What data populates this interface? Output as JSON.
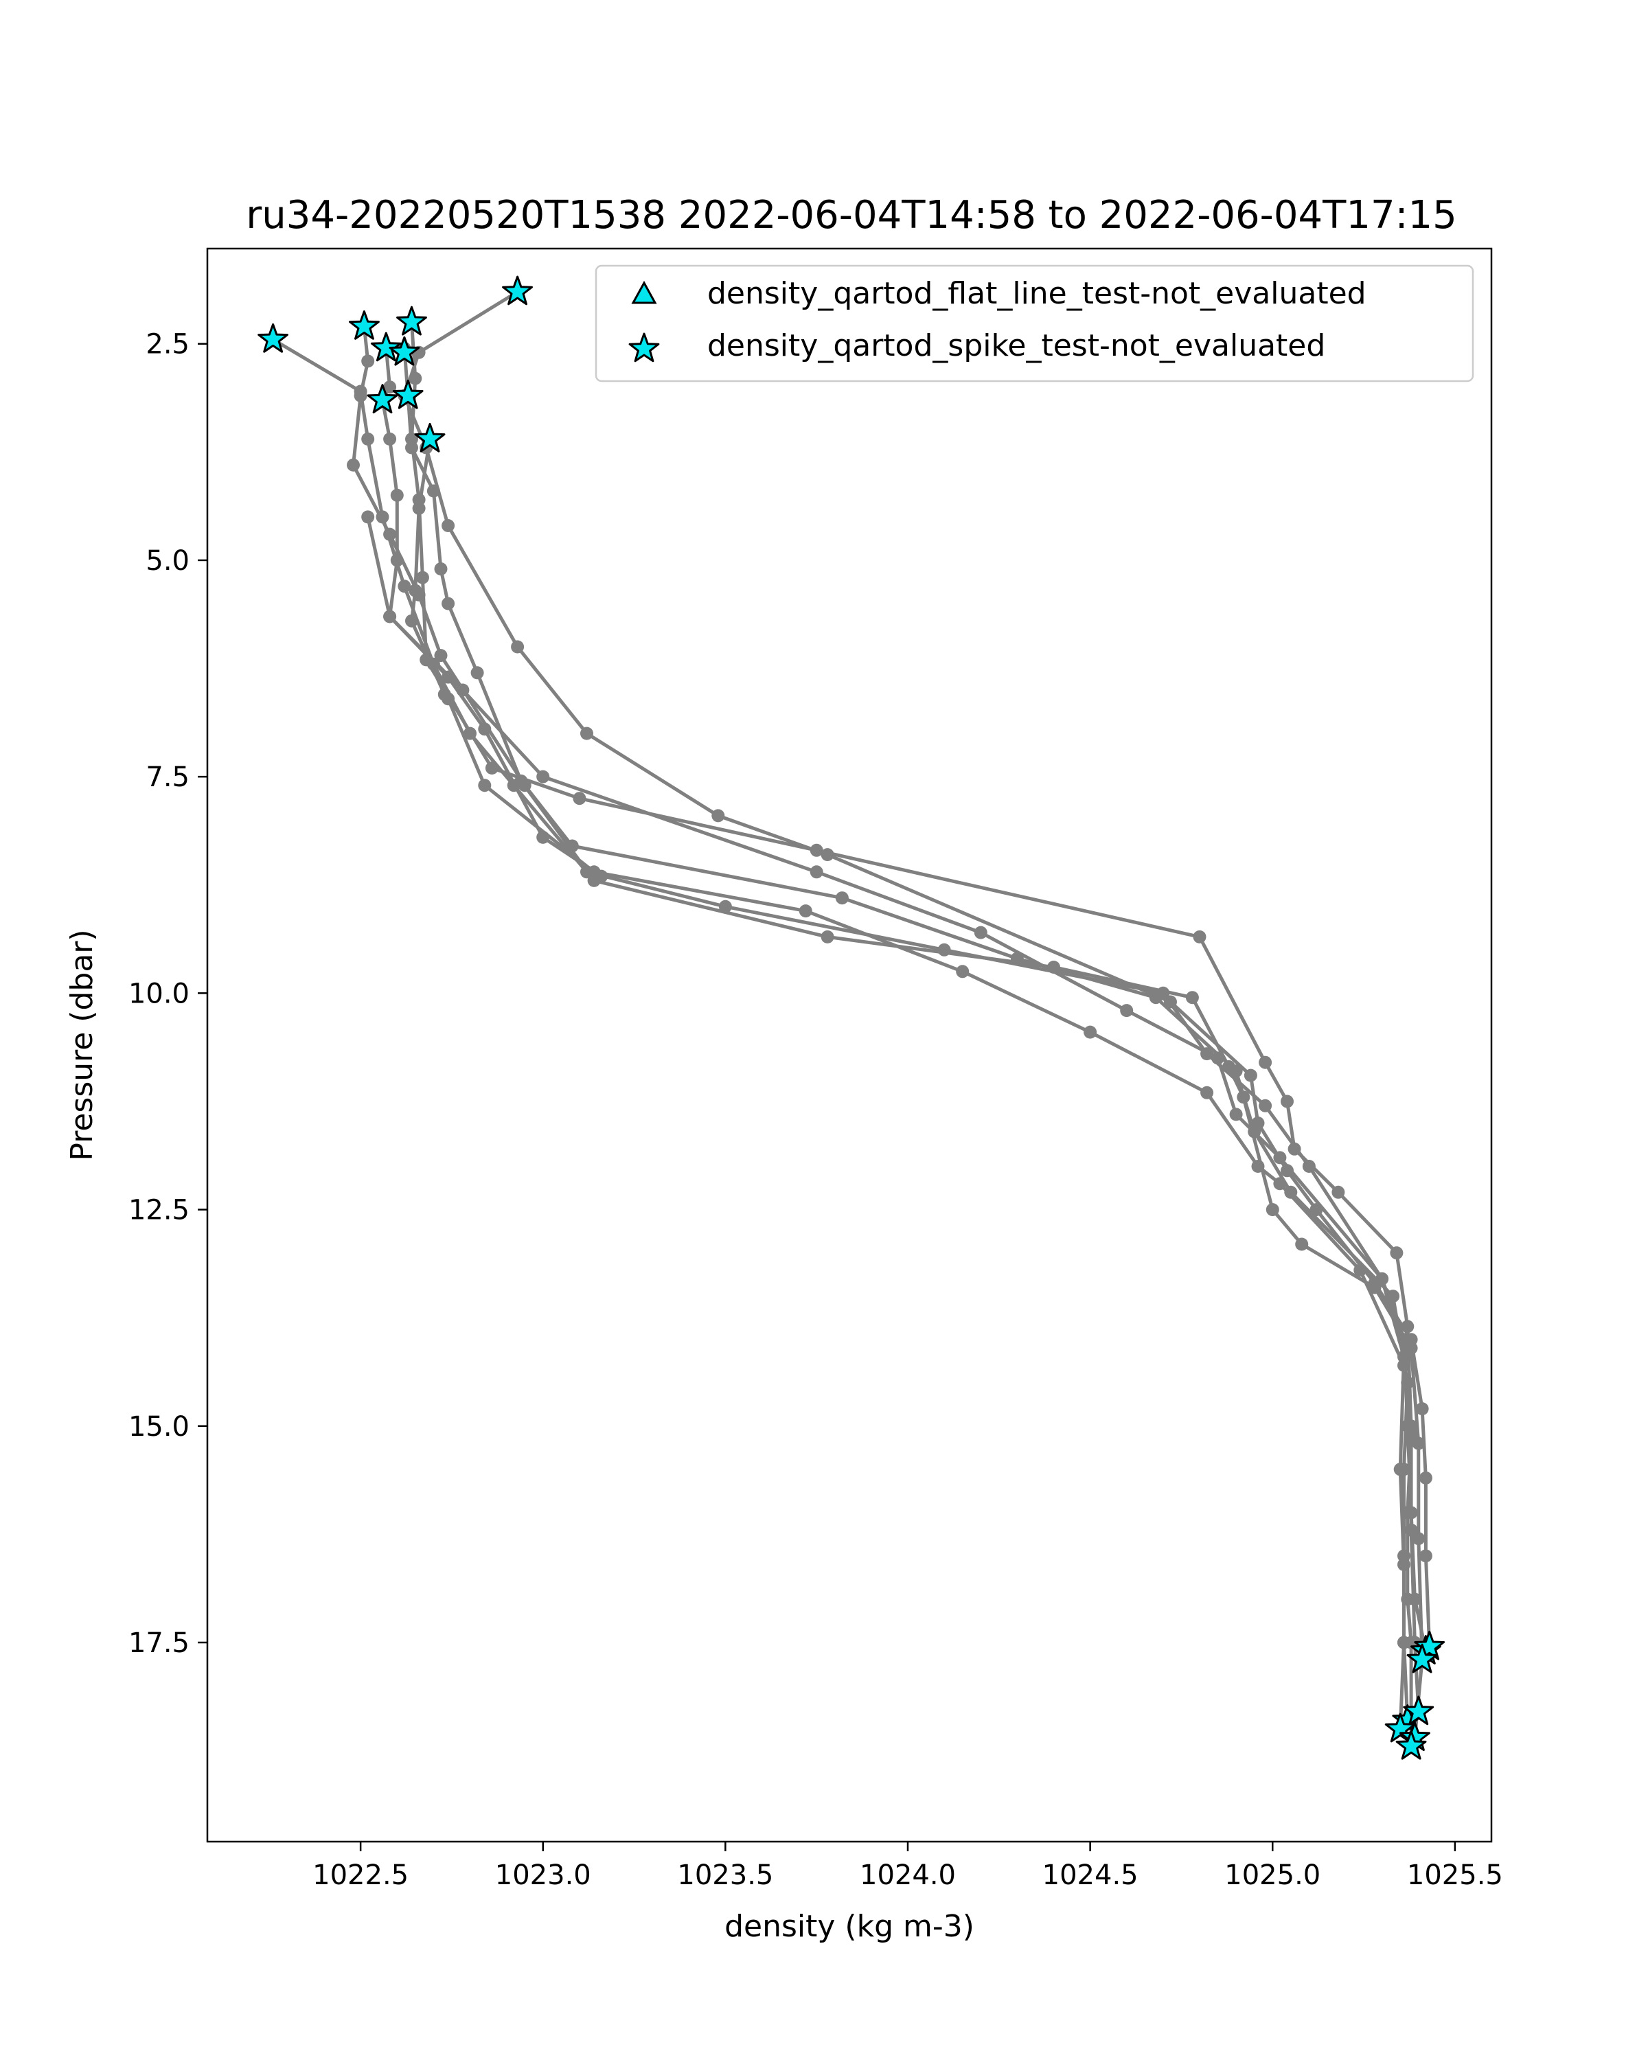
{
  "chart_data": {
    "type": "scatter",
    "title": "ru34-20220520T1538 2022-06-04T14:58 to 2022-06-04T17:15",
    "xlabel": "density (kg m-3)",
    "ylabel": "Pressure (dbar)",
    "xlim": [
      1022.08,
      1025.6
    ],
    "ylim": [
      19.8,
      1.4
    ],
    "y_inverted": true,
    "grid": false,
    "xticks": [
      1022.5,
      1023.0,
      1023.5,
      1024.0,
      1024.5,
      1025.0,
      1025.5
    ],
    "xtick_labels": [
      "1022.5",
      "1023.0",
      "1023.5",
      "1024.0",
      "1024.5",
      "1025.0",
      "1025.5"
    ],
    "yticks": [
      2.5,
      5.0,
      7.5,
      10.0,
      12.5,
      15.0,
      17.5
    ],
    "ytick_labels": [
      "2.5",
      "5.0",
      "7.5",
      "10.0",
      "12.5",
      "15.0",
      "17.5"
    ],
    "line_color": "#808080",
    "marker_color": "#00e5ee",
    "legend": {
      "position": "upper right",
      "entries": [
        {
          "label": "density_qartod_flat_line_test-not_evaluated",
          "marker": "triangle"
        },
        {
          "label": "density_qartod_spike_test-not_evaluated",
          "marker": "star"
        }
      ]
    },
    "profiles": [
      {
        "points": [
          [
            1022.26,
            2.45
          ],
          [
            1022.5,
            3.05
          ],
          [
            1022.52,
            3.6
          ],
          [
            1022.56,
            4.5
          ],
          [
            1022.62,
            5.3
          ],
          [
            1022.7,
            6.2
          ],
          [
            1022.8,
            7.0
          ],
          [
            1022.92,
            7.6
          ],
          [
            1023.12,
            8.6
          ],
          [
            1023.5,
            9.0
          ],
          [
            1024.1,
            9.5
          ],
          [
            1024.7,
            10.0
          ],
          [
            1024.82,
            10.7
          ],
          [
            1024.98,
            11.3
          ],
          [
            1025.1,
            12.0
          ],
          [
            1025.3,
            13.3
          ],
          [
            1025.36,
            14.0
          ],
          [
            1025.37,
            15.0
          ],
          [
            1025.38,
            16.0
          ],
          [
            1025.39,
            17.0
          ],
          [
            1025.42,
            17.6
          ]
        ]
      },
      {
        "points": [
          [
            1022.51,
            2.3
          ],
          [
            1022.52,
            2.7
          ],
          [
            1022.5,
            3.1
          ],
          [
            1022.48,
            3.9
          ],
          [
            1022.58,
            4.7
          ],
          [
            1022.66,
            5.4
          ],
          [
            1022.72,
            6.1
          ],
          [
            1022.95,
            7.6
          ],
          [
            1023.08,
            8.3
          ],
          [
            1023.82,
            8.9
          ],
          [
            1024.3,
            9.6
          ],
          [
            1024.68,
            10.05
          ],
          [
            1024.9,
            10.9
          ],
          [
            1024.95,
            11.6
          ],
          [
            1025.05,
            12.3
          ],
          [
            1025.33,
            13.5
          ],
          [
            1025.37,
            14.5
          ],
          [
            1025.36,
            15.5
          ],
          [
            1025.36,
            16.5
          ],
          [
            1025.36,
            17.5
          ],
          [
            1025.37,
            18.4
          ]
        ]
      },
      {
        "points": [
          [
            1022.64,
            2.25
          ],
          [
            1022.65,
            2.9
          ],
          [
            1022.64,
            3.6
          ],
          [
            1022.66,
            4.3
          ],
          [
            1022.67,
            5.2
          ],
          [
            1022.68,
            6.15
          ],
          [
            1022.86,
            7.4
          ],
          [
            1023.1,
            7.75
          ],
          [
            1023.75,
            8.35
          ],
          [
            1024.8,
            9.35
          ],
          [
            1024.98,
            10.8
          ],
          [
            1025.04,
            11.25
          ],
          [
            1025.06,
            11.8
          ],
          [
            1025.18,
            12.3
          ],
          [
            1025.34,
            13.0
          ],
          [
            1025.37,
            13.85
          ],
          [
            1025.38,
            15.0
          ],
          [
            1025.38,
            16.2
          ],
          [
            1025.39,
            17.5
          ],
          [
            1025.4,
            18.3
          ]
        ]
      },
      {
        "points": [
          [
            1022.57,
            2.55
          ],
          [
            1022.58,
            3.0
          ],
          [
            1022.56,
            3.15
          ],
          [
            1022.58,
            3.6
          ],
          [
            1022.6,
            4.25
          ],
          [
            1022.6,
            5.0
          ],
          [
            1022.58,
            5.65
          ],
          [
            1022.78,
            6.5
          ],
          [
            1023.0,
            7.5
          ],
          [
            1023.75,
            8.6
          ],
          [
            1024.2,
            9.3
          ],
          [
            1024.6,
            10.2
          ],
          [
            1024.85,
            10.75
          ],
          [
            1024.9,
            11.4
          ],
          [
            1025.02,
            11.9
          ],
          [
            1025.3,
            13.3
          ],
          [
            1025.36,
            14.2
          ],
          [
            1025.35,
            15.5
          ],
          [
            1025.36,
            16.6
          ],
          [
            1025.36,
            17.5
          ],
          [
            1025.35,
            18.5
          ]
        ]
      },
      {
        "points": [
          [
            1022.93,
            1.9
          ],
          [
            1022.66,
            2.6
          ],
          [
            1022.62,
            3.1
          ],
          [
            1022.68,
            3.7
          ],
          [
            1022.74,
            4.6
          ],
          [
            1022.93,
            6.0
          ],
          [
            1023.12,
            7.0
          ],
          [
            1023.48,
            7.95
          ],
          [
            1023.78,
            8.4
          ],
          [
            1024.72,
            10.1
          ],
          [
            1024.94,
            10.95
          ],
          [
            1024.96,
            11.5
          ],
          [
            1025.04,
            12.05
          ],
          [
            1025.12,
            12.5
          ],
          [
            1025.28,
            13.35
          ],
          [
            1025.38,
            14.0
          ],
          [
            1025.41,
            14.8
          ],
          [
            1025.42,
            15.6
          ],
          [
            1025.42,
            16.5
          ],
          [
            1025.43,
            17.55
          ]
        ]
      },
      {
        "points": [
          [
            1022.62,
            2.55
          ],
          [
            1022.63,
            3.1
          ],
          [
            1022.64,
            3.7
          ],
          [
            1022.7,
            4.2
          ],
          [
            1022.72,
            5.1
          ],
          [
            1022.74,
            5.5
          ],
          [
            1022.82,
            6.3
          ],
          [
            1022.94,
            7.55
          ],
          [
            1023.14,
            8.7
          ],
          [
            1023.78,
            9.35
          ],
          [
            1024.4,
            9.7
          ],
          [
            1024.78,
            10.05
          ],
          [
            1024.88,
            10.85
          ],
          [
            1024.92,
            11.2
          ],
          [
            1025.0,
            12.5
          ],
          [
            1025.08,
            12.9
          ],
          [
            1025.28,
            13.4
          ],
          [
            1025.38,
            14.1
          ],
          [
            1025.4,
            15.2
          ],
          [
            1025.4,
            16.3
          ],
          [
            1025.41,
            17.7
          ],
          [
            1025.39,
            18.6
          ]
        ]
      },
      {
        "points": [
          [
            1022.69,
            3.6
          ],
          [
            1022.66,
            4.4
          ],
          [
            1022.65,
            5.35
          ],
          [
            1022.64,
            5.7
          ],
          [
            1022.73,
            6.55
          ],
          [
            1022.74,
            6.6
          ],
          [
            1022.84,
            7.6
          ],
          [
            1023.14,
            8.6
          ],
          [
            1023.72,
            9.05
          ],
          [
            1024.15,
            9.75
          ],
          [
            1024.5,
            10.45
          ],
          [
            1024.82,
            11.15
          ],
          [
            1024.96,
            12.0
          ],
          [
            1025.02,
            12.2
          ],
          [
            1025.24,
            13.2
          ],
          [
            1025.36,
            14.3
          ],
          [
            1025.38,
            15.1
          ],
          [
            1025.37,
            16.0
          ],
          [
            1025.37,
            17.0
          ],
          [
            1025.38,
            17.5
          ],
          [
            1025.38,
            18.7
          ]
        ]
      },
      {
        "points": [
          [
            1022.52,
            4.5
          ],
          [
            1022.58,
            5.65
          ],
          [
            1022.74,
            6.35
          ],
          [
            1022.84,
            6.95
          ],
          [
            1023.0,
            8.2
          ],
          [
            1023.16,
            8.65
          ]
        ]
      }
    ],
    "flagged_points": [
      [
        1022.26,
        2.45
      ],
      [
        1022.51,
        2.3
      ],
      [
        1022.64,
        2.25
      ],
      [
        1022.57,
        2.55
      ],
      [
        1022.62,
        2.6
      ],
      [
        1022.93,
        1.9
      ],
      [
        1022.56,
        3.15
      ],
      [
        1022.63,
        3.1
      ],
      [
        1022.69,
        3.6
      ],
      [
        1025.42,
        17.6
      ],
      [
        1025.43,
        17.55
      ],
      [
        1025.41,
        17.7
      ],
      [
        1025.37,
        18.4
      ],
      [
        1025.4,
        18.3
      ],
      [
        1025.35,
        18.5
      ],
      [
        1025.39,
        18.6
      ],
      [
        1025.38,
        18.7
      ]
    ]
  }
}
